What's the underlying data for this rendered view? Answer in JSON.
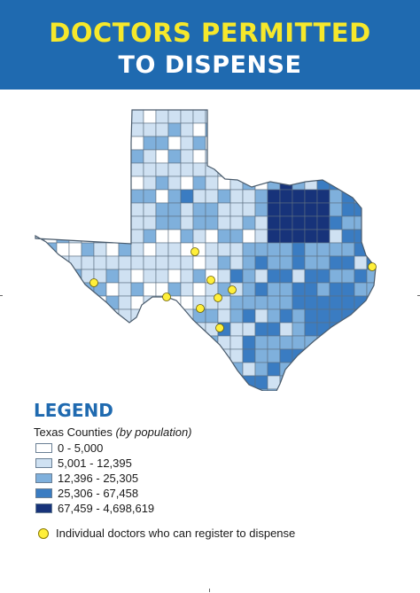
{
  "header": {
    "title_line1": "DOCTORS PERMITTED",
    "title_line2": "TO DISPENSE",
    "background": "#1f6ab0",
    "title_color": "#f6e82b"
  },
  "legend": {
    "title": "LEGEND",
    "subtitle_main": "Texas Counties",
    "subtitle_note": "(by population)",
    "classes": [
      {
        "label": "0 - 5,000",
        "color": "#ffffff"
      },
      {
        "label": "5,001 - 12,395",
        "color": "#cfe1f2"
      },
      {
        "label": "12,396 - 25,305",
        "color": "#7fb0dc"
      },
      {
        "label": "25,306 - 67,458",
        "color": "#3a7cc2"
      },
      {
        "label": "67,459 - 4,698,619",
        "color": "#17337a"
      }
    ],
    "dot_label": "Individual doctors who can register to dispense",
    "dot_color": "#ffef3a"
  },
  "map": {
    "region": "Texas",
    "doctor_count": 9
  }
}
